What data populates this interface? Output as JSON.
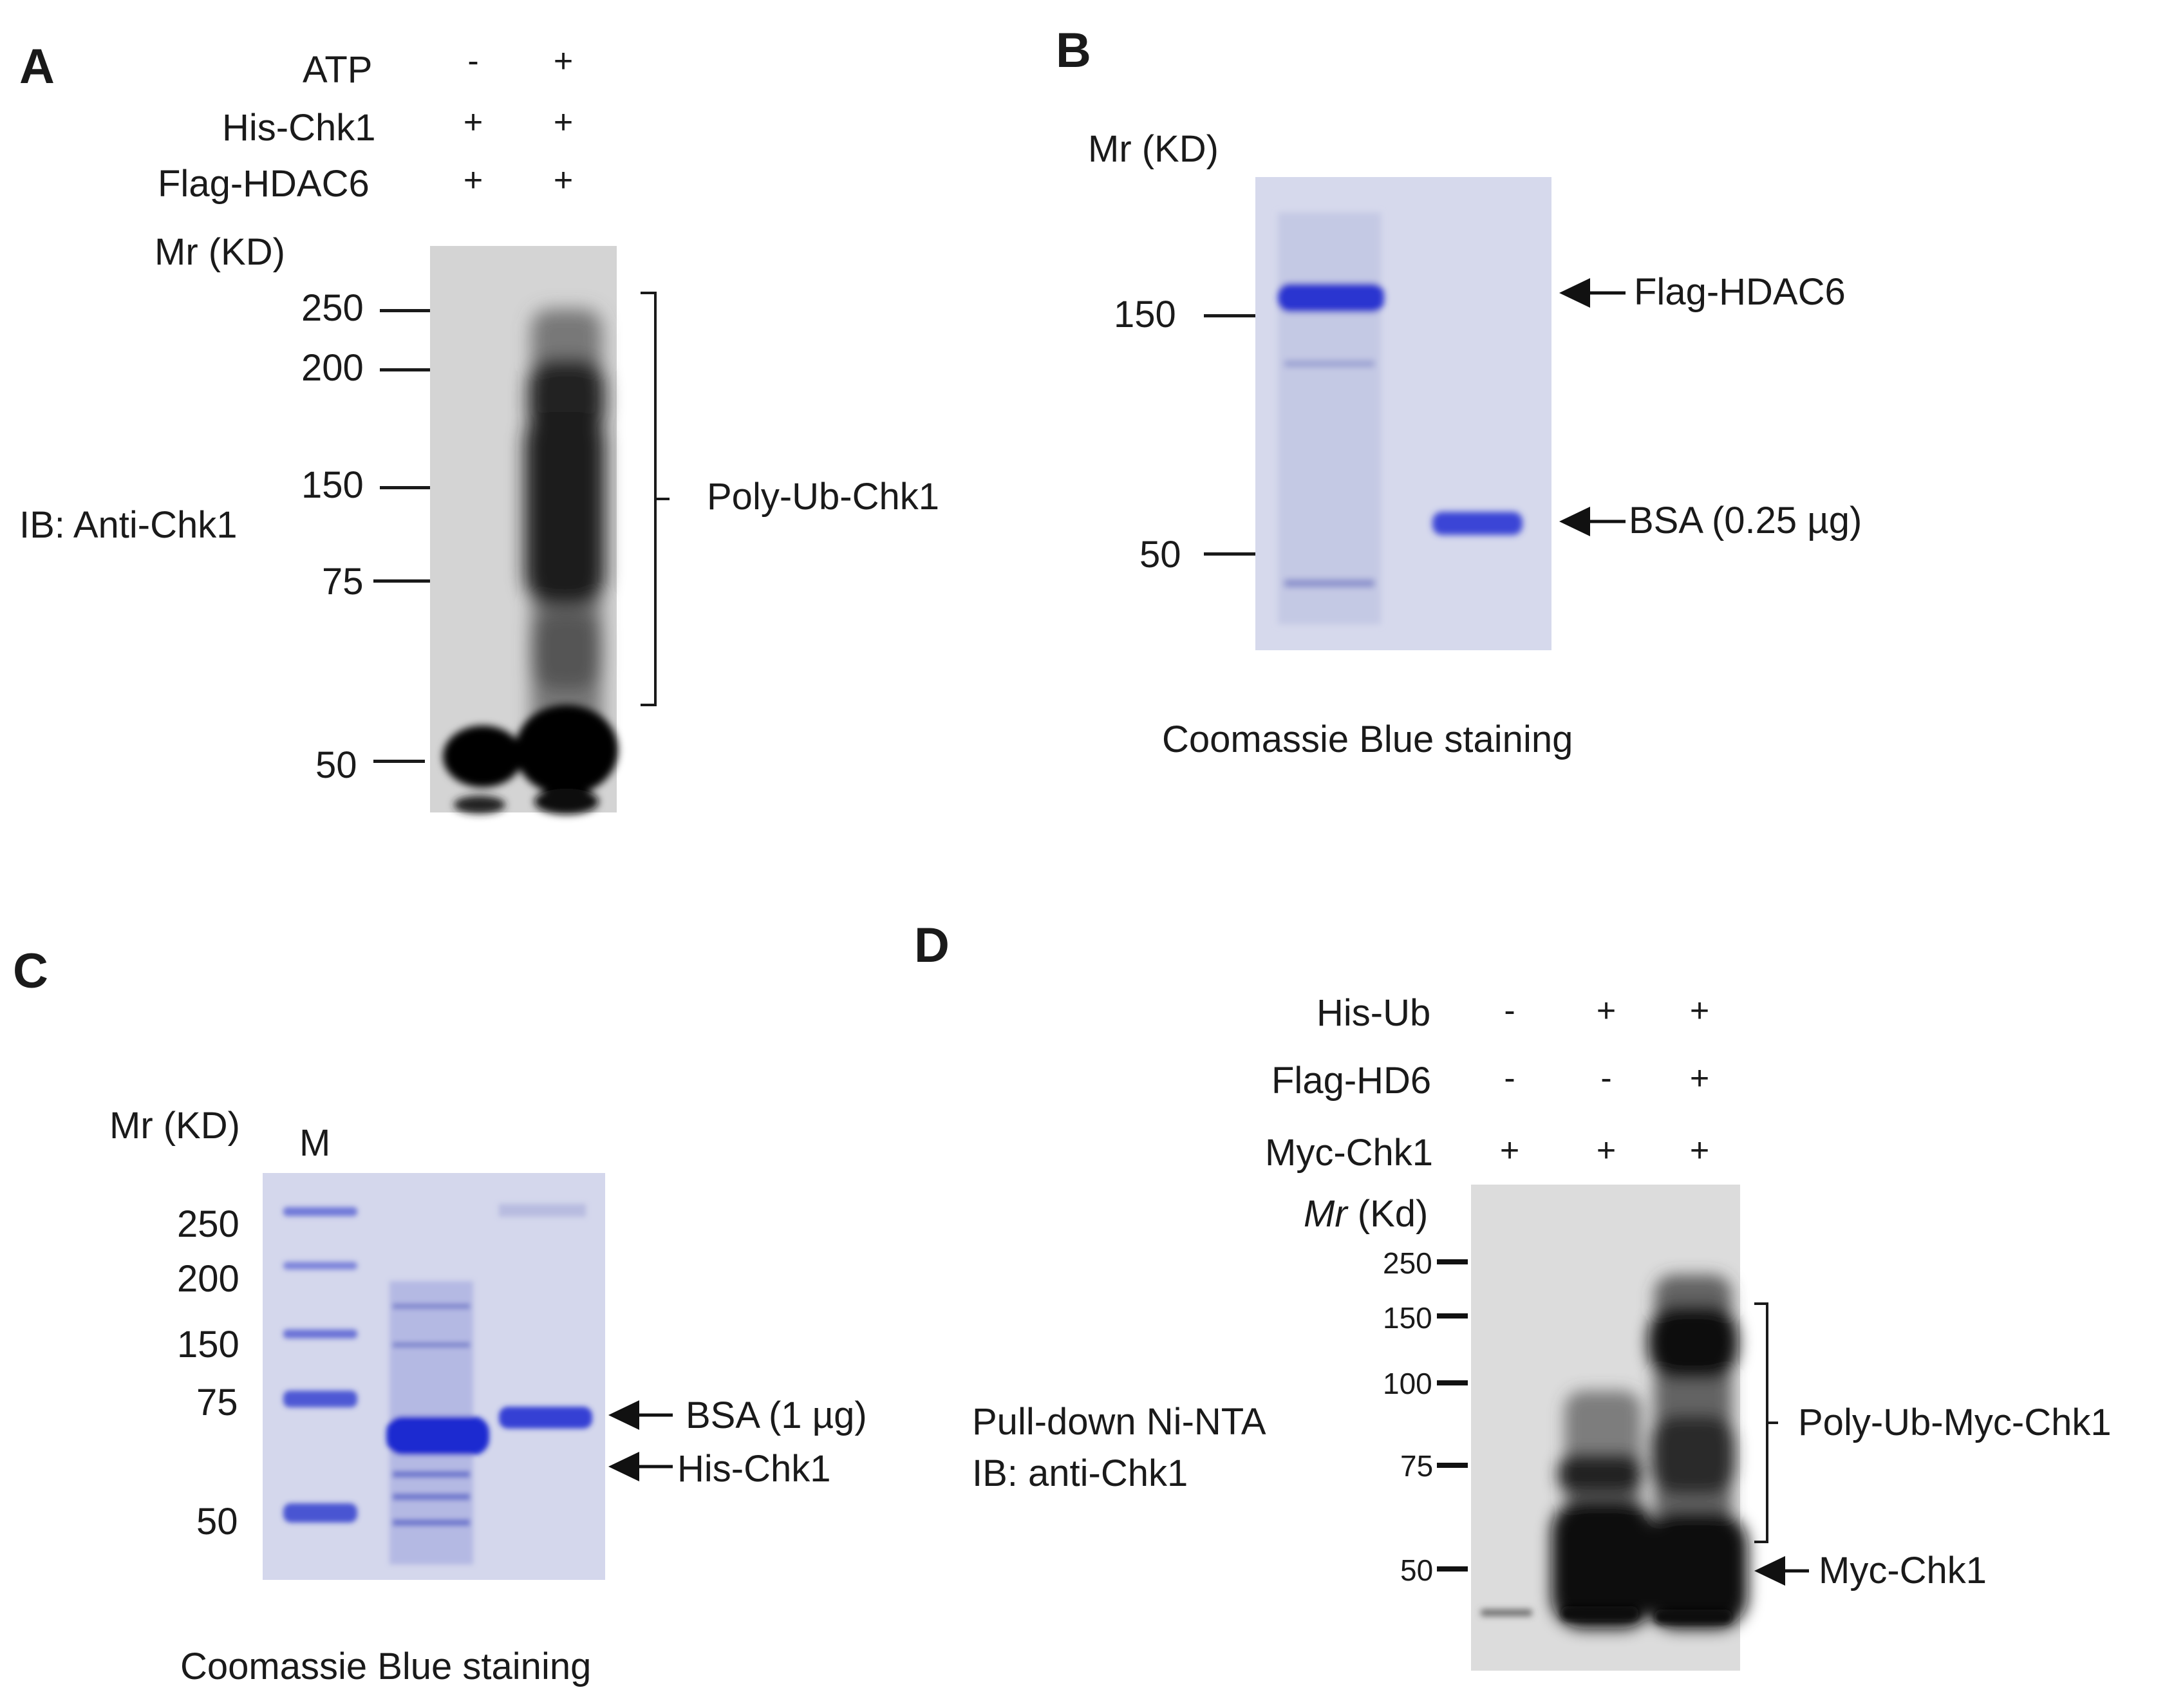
{
  "panels": {
    "a": {
      "letter": "A",
      "rows": [
        {
          "label": "ATP",
          "lanes": [
            "-",
            "+"
          ]
        },
        {
          "label": "His-Chk1",
          "lanes": [
            "+",
            "+"
          ]
        },
        {
          "label": "Flag-HDAC6",
          "lanes": [
            "+",
            "+"
          ]
        }
      ],
      "mr_label": "Mr (KD)",
      "markers": [
        "250",
        "200",
        "150",
        "75",
        "50"
      ],
      "ib_label": "IB: Anti-Chk1",
      "bracket_label": "Poly-Ub-Chk1"
    },
    "b": {
      "letter": "B",
      "mr_label": "Mr (KD)",
      "markers": [
        "150",
        "50"
      ],
      "arrow_flag": "Flag-HDAC6",
      "arrow_bsa": "BSA  (0.25 µg)",
      "caption": "Coomassie  Blue  staining"
    },
    "c": {
      "letter": "C",
      "mr_label": "Mr (KD)",
      "lane_m": "M",
      "markers": [
        "250",
        "200",
        "150",
        "75",
        "50"
      ],
      "arrow_bsa": "BSA (1 µg)",
      "arrow_his": "His-Chk1",
      "caption": "Coomassie  Blue  staining"
    },
    "d": {
      "letter": "D",
      "rows": [
        {
          "label": "His-Ub",
          "lanes": [
            "-",
            "+",
            "+"
          ]
        },
        {
          "label": "Flag-HD6",
          "lanes": [
            "-",
            "-",
            "+"
          ]
        },
        {
          "label": "Myc-Chk1",
          "lanes": [
            "+",
            "+",
            "+"
          ]
        }
      ],
      "mr_label_italic": "Mr",
      "mr_label_rest": " (Kd)",
      "markers": [
        "250",
        "150",
        "100",
        "75",
        "50"
      ],
      "pulldown_line1": "Pull-down Ni-NTA",
      "pulldown_line2": "IB:  anti-Chk1",
      "bracket_label": "Poly-Ub-Myc-Chk1",
      "arrow_myc": "Myc-Chk1"
    }
  },
  "colors": {
    "coomassie_bg": "#d9dcee",
    "coomassie_band": "#3a44d6",
    "film_bg": "#dadada",
    "film_band": "#0a0a0a"
  }
}
